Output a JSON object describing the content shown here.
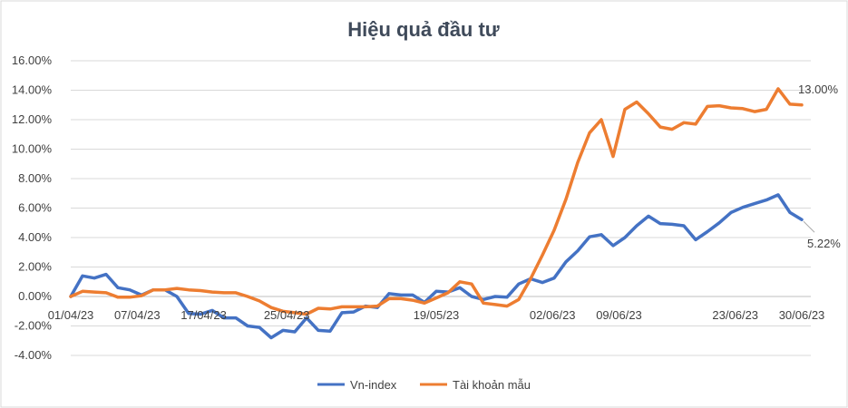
{
  "chart_data": {
    "type": "line",
    "title": "Hiệu quả đầu tư",
    "xlabel": "",
    "ylabel": "",
    "ylim": [
      -4,
      16
    ],
    "yticks": [
      "-4.00%",
      "-2.00%",
      "0.00%",
      "2.00%",
      "4.00%",
      "6.00%",
      "8.00%",
      "10.00%",
      "12.00%",
      "14.00%",
      "16.00%"
    ],
    "x_tick_labels": [
      "01/04/23",
      "07/04/23",
      "17/04/23",
      "25/04/23",
      "19/05/23",
      "02/06/23",
      "09/06/23",
      "23/06/23",
      "30/06/23"
    ],
    "x_tick_index": [
      0,
      4,
      8,
      13,
      22,
      29,
      33,
      40,
      44
    ],
    "grid": true,
    "legend_position": "bottom",
    "series": [
      {
        "name": "Vn-index",
        "color": "#4472c4",
        "values": [
          0.0,
          1.4,
          1.25,
          1.5,
          0.6,
          0.45,
          0.1,
          0.45,
          0.45,
          0.0,
          -1.15,
          -1.2,
          -0.95,
          -1.45,
          -1.45,
          -2.0,
          -2.1,
          -2.8,
          -2.3,
          -2.4,
          -1.45,
          -2.3,
          -2.35,
          -1.1,
          -1.05,
          -0.65,
          -0.75,
          0.2,
          0.1,
          0.1,
          -0.4,
          0.35,
          0.3,
          0.6,
          0.0,
          -0.2,
          0.0,
          -0.05,
          0.85,
          1.2,
          0.95,
          1.25,
          2.35,
          3.1,
          4.05,
          4.2,
          3.45,
          4.0,
          4.8,
          5.45,
          4.95,
          4.9,
          4.8,
          3.85,
          4.4,
          5.0,
          5.7,
          6.05,
          6.3,
          6.55,
          6.9,
          5.7,
          5.22
        ],
        "end_label": "5.22%"
      },
      {
        "name": "Tài khoản mẫu",
        "color": "#ed7d31",
        "values": [
          0.0,
          0.35,
          0.3,
          0.25,
          -0.05,
          -0.05,
          0.05,
          0.45,
          0.45,
          0.55,
          0.45,
          0.4,
          0.3,
          0.25,
          0.25,
          0.0,
          -0.3,
          -0.75,
          -1.0,
          -1.1,
          -1.2,
          -0.8,
          -0.85,
          -0.7,
          -0.7,
          -0.7,
          -0.65,
          -0.15,
          -0.15,
          -0.25,
          -0.45,
          -0.1,
          0.25,
          1.0,
          0.85,
          -0.45,
          -0.55,
          -0.65,
          -0.2,
          1.2,
          2.8,
          4.5,
          6.6,
          9.1,
          11.1,
          12.0,
          9.5,
          12.7,
          13.2,
          12.4,
          11.5,
          11.35,
          11.8,
          11.7,
          12.9,
          12.95,
          12.8,
          12.75,
          12.55,
          12.7,
          14.1,
          13.05,
          13.0
        ],
        "end_label": "13.00%"
      }
    ]
  }
}
